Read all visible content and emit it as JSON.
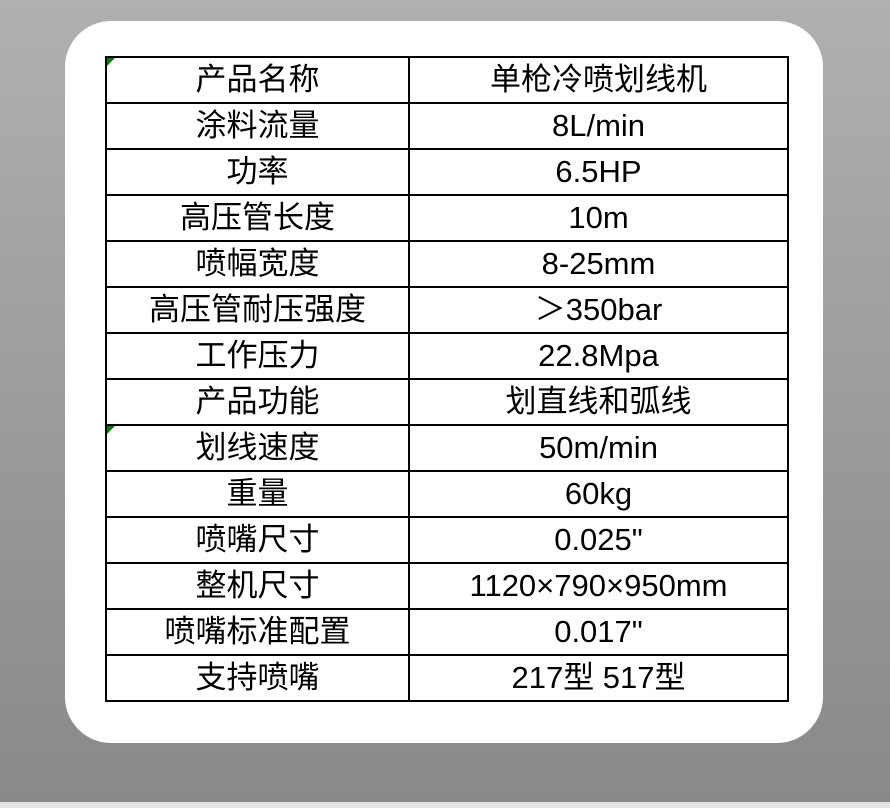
{
  "colors": {
    "background_top": "#b0b0b0",
    "background_bottom": "#898989",
    "bottom_strip": "#e4e4e4",
    "card": "#ffffff",
    "table_border": "#000000",
    "text": "#000000",
    "flag_green": "#0e7a0e"
  },
  "spec_table": {
    "rows": [
      {
        "label": "产品名称",
        "value": "单枪冷喷划线机",
        "flag": true
      },
      {
        "label": "涂料流量",
        "value": "8L/min",
        "flag": false
      },
      {
        "label": "功率",
        "value": "6.5HP",
        "flag": false
      },
      {
        "label": "高压管长度",
        "value": "10m",
        "flag": false
      },
      {
        "label": "喷幅宽度",
        "value": "8-25mm",
        "flag": false
      },
      {
        "label": "高压管耐压强度",
        "value": "＞350bar",
        "flag": false
      },
      {
        "label": "工作压力",
        "value": "22.8Mpa",
        "flag": false
      },
      {
        "label": "产品功能",
        "value": "划直线和弧线",
        "flag": false
      },
      {
        "label": "划线速度",
        "value": "50m/min",
        "flag": true
      },
      {
        "label": "重量",
        "value": "60kg",
        "flag": false
      },
      {
        "label": "喷嘴尺寸",
        "value": "0.025\"",
        "flag": false
      },
      {
        "label": "整机尺寸",
        "value": "1120×790×950mm",
        "flag": false
      },
      {
        "label": "喷嘴标准配置",
        "value": "0.017\"",
        "flag": false
      },
      {
        "label": "支持喷嘴",
        "value": "217型 517型",
        "flag": false
      }
    ]
  }
}
